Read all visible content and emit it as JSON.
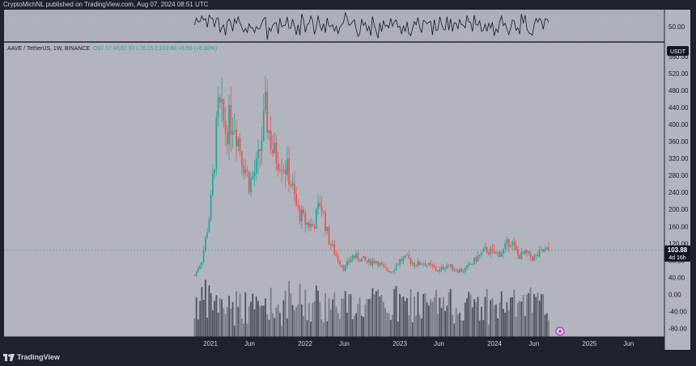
{
  "header": {
    "publisher_text": "CryptoMichNL published on TradingView.com, Aug 07, 2024 08:51 UTC"
  },
  "legend": {
    "symbol": "AAVE / TetherUS, 1W, BINANCE",
    "open": "O97.17",
    "high": "H107.97",
    "low": "L76.15",
    "close": "C103.88",
    "change": "+6.69 (+6.88%)"
  },
  "currency_label": "USDT",
  "last_price": {
    "value": "103.88",
    "countdown": "4d 16h"
  },
  "rsi_panel": {
    "level_label": "50.00"
  },
  "footer": {
    "brand": "TradingView"
  },
  "colors": {
    "up": "#26a69a",
    "down": "#ef5350",
    "background": "#b2b5be",
    "frame": "#1e222d"
  },
  "chart_data": {
    "type": "candlestick",
    "symbol": "AAVE / TetherUS",
    "interval": "1W",
    "exchange": "BINANCE",
    "y_ticks": [
      "560.00",
      "520.00",
      "480.00",
      "440.00",
      "400.00",
      "360.00",
      "320.00",
      "280.00",
      "240.00",
      "200.00",
      "160.00",
      "120.00",
      "80.00",
      "40.00",
      "0.00",
      "-40.00",
      "-80.00"
    ],
    "x_ticks": [
      "2021",
      "Jun",
      "2022",
      "Jun",
      "2023",
      "Jun",
      "2024",
      "Jun",
      "2025",
      "Jun"
    ],
    "ylim": [
      -100,
      575
    ],
    "price_path": [
      [
        "2020-11-01",
        45
      ],
      [
        "2020-12-01",
        85
      ],
      [
        "2021-01-01",
        200
      ],
      [
        "2021-02-01",
        440
      ],
      [
        "2021-03-01",
        390
      ],
      [
        "2021-04-01",
        420
      ],
      [
        "2021-05-01",
        330
      ],
      [
        "2021-06-01",
        260
      ],
      [
        "2021-07-01",
        300
      ],
      [
        "2021-08-01",
        430
      ],
      [
        "2021-09-01",
        330
      ],
      [
        "2021-10-01",
        320
      ],
      [
        "2021-11-01",
        280
      ],
      [
        "2021-12-01",
        200
      ],
      [
        "2022-01-01",
        170
      ],
      [
        "2022-02-01",
        160
      ],
      [
        "2022-03-01",
        220
      ],
      [
        "2022-04-01",
        130
      ],
      [
        "2022-05-01",
        90
      ],
      [
        "2022-06-01",
        60
      ],
      [
        "2022-07-01",
        90
      ],
      [
        "2022-08-01",
        85
      ],
      [
        "2022-09-01",
        75
      ],
      [
        "2022-10-01",
        80
      ],
      [
        "2022-11-01",
        60
      ],
      [
        "2022-12-01",
        55
      ],
      [
        "2023-01-01",
        80
      ],
      [
        "2023-02-01",
        85
      ],
      [
        "2023-03-01",
        70
      ],
      [
        "2023-04-01",
        75
      ],
      [
        "2023-05-01",
        65
      ],
      [
        "2023-06-01",
        55
      ],
      [
        "2023-07-01",
        70
      ],
      [
        "2023-08-01",
        60
      ],
      [
        "2023-09-01",
        55
      ],
      [
        "2023-10-01",
        70
      ],
      [
        "2023-11-01",
        90
      ],
      [
        "2023-12-01",
        105
      ],
      [
        "2024-01-01",
        95
      ],
      [
        "2024-02-01",
        100
      ],
      [
        "2024-03-01",
        130
      ],
      [
        "2024-04-01",
        90
      ],
      [
        "2024-05-01",
        95
      ],
      [
        "2024-06-01",
        85
      ],
      [
        "2024-07-01",
        100
      ],
      [
        "2024-08-01",
        103.88
      ]
    ],
    "rsi_level": 50
  }
}
